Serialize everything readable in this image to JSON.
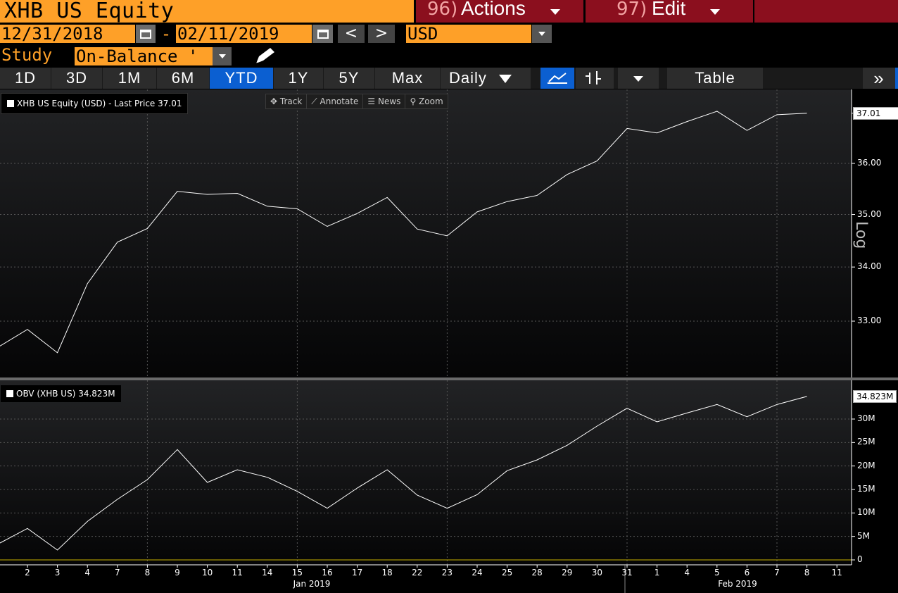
{
  "header": {
    "title": "XHB US Equity",
    "actions": {
      "num": "96)",
      "label": "Actions"
    },
    "edit": {
      "num": "97)",
      "label": "Edit"
    }
  },
  "date_range": {
    "start": "12/31/2018",
    "separator": "-",
    "end": "02/11/2019",
    "prev": "<",
    "next": ">",
    "currency": "USD"
  },
  "study": {
    "label": "Study",
    "value": "On-Balance '"
  },
  "ranges": {
    "items": [
      "1D",
      "3D",
      "1M",
      "6M",
      "YTD",
      "1Y",
      "5Y",
      "Max"
    ],
    "active": "YTD",
    "frequency": "Daily",
    "table": "Table",
    "more": "»"
  },
  "chart_toolbar": {
    "track": "Track",
    "annotate": "Annotate",
    "news": "News",
    "zoom": "Zoom"
  },
  "colors": {
    "accent": "#fea028",
    "menu": "#8b0f1e",
    "active": "#0b5fd1"
  },
  "chart_data": [
    {
      "type": "line",
      "legend": "XHB US Equity (USD) - Last Price 37.01",
      "last_value_label": "37.01",
      "scale_label": "Log",
      "yticks": [
        "37.01",
        "36.00",
        "35.00",
        "34.00",
        "33.00"
      ],
      "ylim": [
        32.0,
        37.6
      ],
      "x": [
        "2",
        "3",
        "4",
        "7",
        "8",
        "9",
        "10",
        "11",
        "14",
        "15",
        "16",
        "17",
        "18",
        "22",
        "23",
        "24",
        "25",
        "28",
        "29",
        "30",
        "31",
        "1",
        "4",
        "5",
        "6",
        "7",
        "8"
      ],
      "series": [
        {
          "values": [
            32.85,
            32.43,
            33.69,
            34.47,
            34.73,
            35.45,
            35.39,
            35.41,
            35.16,
            35.11,
            34.77,
            35.02,
            35.33,
            34.72,
            34.59,
            35.05,
            35.25,
            35.37,
            35.78,
            36.05,
            36.7,
            36.61,
            36.84,
            37.05,
            36.66,
            36.98,
            37.01
          ]
        }
      ],
      "left_start": 32.55
    },
    {
      "type": "line",
      "legend": "OBV (XHB US) 34.823M",
      "last_value_label": "34.823M",
      "yticks": [
        "30M",
        "25M",
        "20M",
        "15M",
        "10M",
        "5M",
        "0"
      ],
      "ylim": [
        0,
        37
      ],
      "x": [
        "2",
        "3",
        "4",
        "7",
        "8",
        "9",
        "10",
        "11",
        "14",
        "15",
        "16",
        "17",
        "18",
        "22",
        "23",
        "24",
        "25",
        "28",
        "29",
        "30",
        "31",
        "1",
        "4",
        "5",
        "6",
        "7",
        "8"
      ],
      "series": [
        {
          "values": [
            6.7,
            2.1,
            8.2,
            12.9,
            17.1,
            23.5,
            16.5,
            19.2,
            17.6,
            14.6,
            11.0,
            15.3,
            19.2,
            13.8,
            11.0,
            13.9,
            19.0,
            21.3,
            24.4,
            28.5,
            32.3,
            29.4,
            31.3,
            33.1,
            30.5,
            33.1,
            34.823
          ]
        }
      ],
      "left_start": 3.6
    }
  ],
  "x_axis": {
    "ticks": [
      "2",
      "3",
      "4",
      "7",
      "8",
      "9",
      "10",
      "11",
      "14",
      "15",
      "16",
      "17",
      "18",
      "22",
      "23",
      "24",
      "25",
      "28",
      "29",
      "30",
      "31",
      "1",
      "4",
      "5",
      "6",
      "7",
      "8",
      "11"
    ],
    "months": [
      "Jan 2019",
      "Feb 2019"
    ]
  }
}
